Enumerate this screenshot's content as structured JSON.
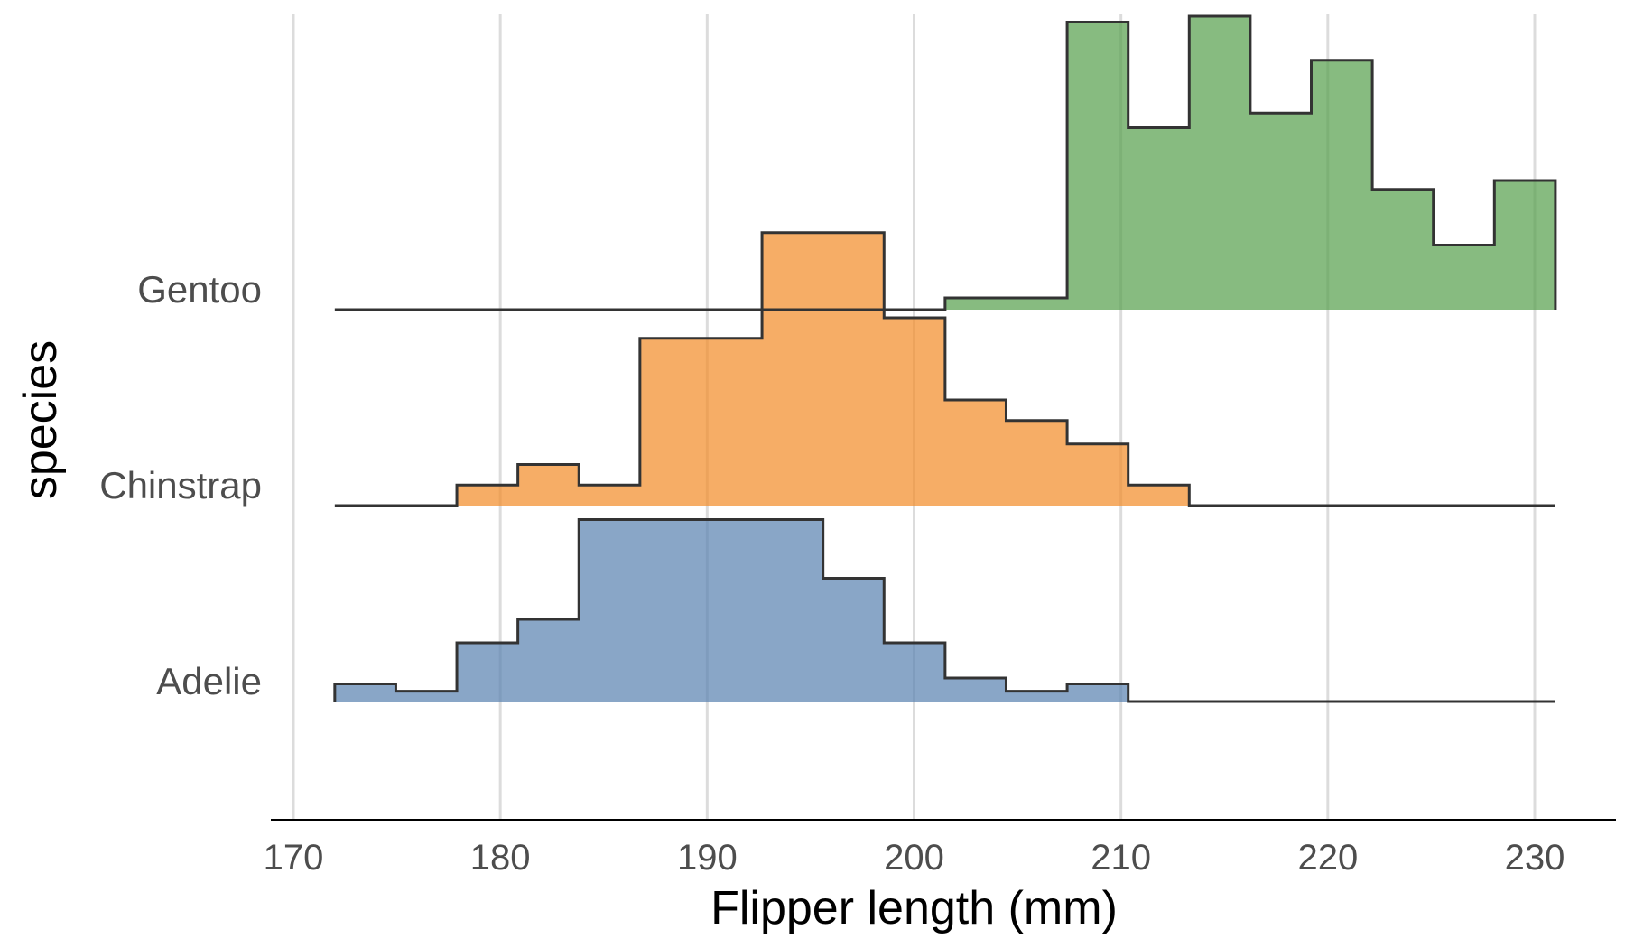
{
  "chart_data": {
    "type": "ridgeline-histogram",
    "xlabel": "Flipper length (mm)",
    "ylabel": "species",
    "xlim": [
      169,
      233
    ],
    "xticks": [
      170,
      180,
      190,
      200,
      210,
      220,
      230
    ],
    "xtick_labels": [
      "170",
      "180",
      "190",
      "200",
      "210",
      "220",
      "230"
    ],
    "grid": "vertical",
    "bin_edges": [
      172,
      174.95,
      177.9,
      180.85,
      183.8,
      186.75,
      189.7,
      192.65,
      195.6,
      198.55,
      201.5,
      204.45,
      207.4,
      210.35,
      213.3,
      216.25,
      219.2,
      222.15,
      225.1,
      228.05,
      231
    ],
    "series": [
      {
        "name": "Adelie",
        "color": "#5b84b1",
        "heights": [
          0.06,
          0.035,
          0.2,
          0.28,
          0.62,
          0.62,
          0.62,
          0.62,
          0.42,
          0.2,
          0.08,
          0.035,
          0.06,
          0,
          0,
          0,
          0,
          0,
          0,
          0
        ]
      },
      {
        "name": "Chinstrap",
        "color": "#f28e2b",
        "heights": [
          0,
          0,
          0.07,
          0.14,
          0.07,
          0.57,
          0.57,
          0.93,
          0.93,
          0.64,
          0.36,
          0.29,
          0.21,
          0.07,
          0,
          0,
          0,
          0,
          0,
          0
        ]
      },
      {
        "name": "Gentoo",
        "color": "#59a14f",
        "heights": [
          0,
          0,
          0,
          0,
          0,
          0,
          0,
          0,
          0,
          0,
          0.04,
          0.04,
          0.98,
          0.62,
          1.0,
          0.67,
          0.85,
          0.41,
          0.22,
          0.44
        ]
      }
    ]
  }
}
